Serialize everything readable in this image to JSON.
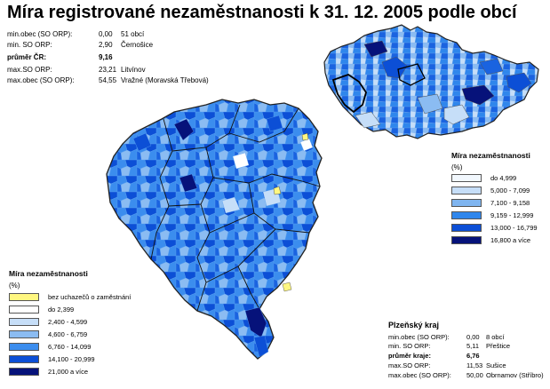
{
  "title": "Míra registrované nezaměstnanosti k 31. 12. 2005 podle obcí",
  "cr_stats": [
    {
      "label": "min.obec (SO ORP):",
      "value": "0,00",
      "note": "51 obcí",
      "bold": false
    },
    {
      "label": "min. SO ORP:",
      "value": "2,90",
      "note": "Černošice",
      "bold": false
    },
    {
      "label": "průměr ČR:",
      "value": "9,16",
      "note": "",
      "bold": true
    },
    {
      "label": "max.SO ORP:",
      "value": "23,21",
      "note": "Litvínov",
      "bold": false
    },
    {
      "label": "max.obec (SO ORP):",
      "value": "54,55",
      "note": "Vražné (Moravská Třebová)",
      "bold": false
    }
  ],
  "region_block": {
    "title": "Plzeňský kraj",
    "stats": [
      {
        "label": "min.obec (SO ORP):",
        "value": "0,00",
        "note": "8 obcí",
        "bold": false
      },
      {
        "label": "min. SO ORP:",
        "value": "5,11",
        "note": "Přeštice",
        "bold": false
      },
      {
        "label": "průměr kraje:",
        "value": "6,76",
        "note": "",
        "bold": true
      },
      {
        "label": "max.SO ORP:",
        "value": "11,53",
        "note": "Sušice",
        "bold": false
      },
      {
        "label": "max.obec (SO ORP):",
        "value": "50,00",
        "note": "Obrnamov (Stříbro)",
        "bold": false
      }
    ]
  },
  "legend_cr": {
    "title": "Míra nezaměstnanosti",
    "unit": "(%)",
    "items": [
      {
        "label": "do 4,999",
        "color": "#f2f8fe"
      },
      {
        "label": "5,000 -  7,099",
        "color": "#c6def8"
      },
      {
        "label": "7,100 -  9,158",
        "color": "#7fb5f0"
      },
      {
        "label": "9,159 - 12,999",
        "color": "#2f86ec"
      },
      {
        "label": "13,000 - 16,799",
        "color": "#0c4fd6"
      },
      {
        "label": "16,800 a více",
        "color": "#06127a"
      }
    ]
  },
  "legend_region": {
    "title": "Míra nezaměstnanosti",
    "unit": "(%)",
    "items": [
      {
        "label": "bez uchazečů o zaměstnání",
        "color": "#fff780"
      },
      {
        "label": "do 2,399",
        "color": "#ffffff"
      },
      {
        "label": "2,400 -   4,599",
        "color": "#c6def8"
      },
      {
        "label": "4,600 -   6,759",
        "color": "#8bbcf2"
      },
      {
        "label": "6,760 - 14,099",
        "color": "#3b8dee"
      },
      {
        "label": "14,100 - 20,999",
        "color": "#0c4fd6"
      },
      {
        "label": "21,000 a více",
        "color": "#06127a"
      }
    ]
  }
}
